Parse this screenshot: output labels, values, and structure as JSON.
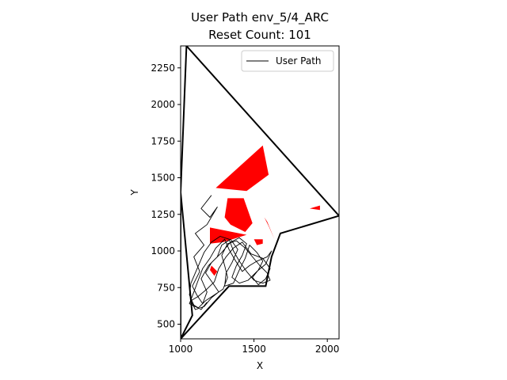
{
  "chart_data": {
    "type": "line",
    "title": "User Path env_5/4_ARC",
    "subtitle": "Reset Count: 101",
    "xlabel": "X",
    "ylabel": "Y",
    "xlim": [
      1000,
      2080
    ],
    "ylim": [
      400,
      2400
    ],
    "xticks": [
      1000,
      1500,
      2000
    ],
    "yticks": [
      500,
      750,
      1000,
      1250,
      1500,
      1750,
      2000,
      2250
    ],
    "legend": {
      "position": "top-right",
      "entries": [
        "User Path"
      ]
    },
    "colors": {
      "boundary": "#000000",
      "obstacle": "#ff0000",
      "path": "#000000"
    },
    "boundary": [
      [
        1040,
        2400
      ],
      [
        2080,
        1240
      ],
      [
        1680,
        1120
      ],
      [
        1620,
        960
      ],
      [
        1580,
        760
      ],
      [
        1480,
        760
      ],
      [
        1330,
        760
      ],
      [
        1000,
        400
      ],
      [
        1000,
        1400
      ],
      [
        1040,
        2400
      ]
    ],
    "boundary_inner": [
      [
        1000,
        1400
      ],
      [
        1080,
        560
      ],
      [
        1000,
        400
      ]
    ],
    "obstacles": [
      [
        [
          1240,
          1430
        ],
        [
          1560,
          1720
        ],
        [
          1600,
          1520
        ],
        [
          1450,
          1410
        ]
      ],
      [
        [
          1320,
          1360
        ],
        [
          1430,
          1360
        ],
        [
          1490,
          1190
        ],
        [
          1440,
          1130
        ],
        [
          1340,
          1180
        ],
        [
          1300,
          1230
        ]
      ],
      [
        [
          1570,
          1230
        ],
        [
          1600,
          1170
        ],
        [
          1640,
          1080
        ],
        [
          1590,
          1200
        ]
      ],
      [
        [
          1200,
          1160
        ],
        [
          1450,
          1110
        ],
        [
          1290,
          1060
        ],
        [
          1200,
          1050
        ]
      ],
      [
        [
          1500,
          1080
        ],
        [
          1560,
          1080
        ],
        [
          1560,
          1050
        ],
        [
          1520,
          1040
        ]
      ],
      [
        [
          1880,
          1290
        ],
        [
          1950,
          1310
        ],
        [
          1950,
          1280
        ]
      ],
      [
        [
          1200,
          870
        ],
        [
          1230,
          830
        ],
        [
          1250,
          860
        ],
        [
          1210,
          900
        ]
      ]
    ],
    "path": [
      [
        1210,
        1380
      ],
      [
        1140,
        1290
      ],
      [
        1200,
        1230
      ],
      [
        1250,
        1300
      ],
      [
        1180,
        1180
      ],
      [
        1100,
        1120
      ],
      [
        1160,
        1040
      ],
      [
        1090,
        960
      ],
      [
        1130,
        860
      ],
      [
        1080,
        760
      ],
      [
        1110,
        700
      ],
      [
        1150,
        640
      ],
      [
        1180,
        720
      ],
      [
        1140,
        810
      ],
      [
        1190,
        900
      ],
      [
        1250,
        960
      ],
      [
        1280,
        1040
      ],
      [
        1340,
        1080
      ],
      [
        1390,
        1010
      ],
      [
        1350,
        920
      ],
      [
        1310,
        850
      ],
      [
        1300,
        760
      ],
      [
        1360,
        780
      ],
      [
        1400,
        870
      ],
      [
        1440,
        950
      ],
      [
        1470,
        1040
      ],
      [
        1520,
        990
      ],
      [
        1560,
        930
      ],
      [
        1530,
        870
      ],
      [
        1490,
        820
      ],
      [
        1530,
        770
      ],
      [
        1580,
        810
      ],
      [
        1610,
        880
      ],
      [
        1560,
        950
      ],
      [
        1480,
        980
      ],
      [
        1420,
        1060
      ],
      [
        1360,
        1020
      ],
      [
        1310,
        960
      ],
      [
        1260,
        880
      ],
      [
        1230,
        790
      ],
      [
        1180,
        740
      ],
      [
        1120,
        690
      ],
      [
        1070,
        660
      ],
      [
        1100,
        600
      ],
      [
        1160,
        620
      ],
      [
        1210,
        680
      ],
      [
        1260,
        720
      ],
      [
        1220,
        780
      ],
      [
        1170,
        850
      ],
      [
        1210,
        920
      ],
      [
        1280,
        990
      ],
      [
        1340,
        1060
      ],
      [
        1400,
        1090
      ],
      [
        1450,
        1050
      ],
      [
        1420,
        970
      ],
      [
        1380,
        900
      ],
      [
        1350,
        820
      ],
      [
        1400,
        780
      ],
      [
        1460,
        800
      ],
      [
        1520,
        860
      ],
      [
        1580,
        910
      ],
      [
        1620,
        1000
      ],
      [
        1590,
        960
      ],
      [
        1520,
        930
      ],
      [
        1470,
        900
      ],
      [
        1420,
        860
      ],
      [
        1370,
        940
      ],
      [
        1330,
        1010
      ],
      [
        1300,
        1080
      ],
      [
        1240,
        1020
      ],
      [
        1200,
        950
      ],
      [
        1150,
        880
      ],
      [
        1120,
        800
      ],
      [
        1090,
        720
      ],
      [
        1060,
        640
      ],
      [
        1120,
        610
      ],
      [
        1170,
        660
      ],
      [
        1230,
        700
      ],
      [
        1290,
        740
      ],
      [
        1320,
        820
      ],
      [
        1300,
        900
      ],
      [
        1280,
        970
      ],
      [
        1320,
        1050
      ],
      [
        1380,
        1070
      ],
      [
        1440,
        1020
      ],
      [
        1490,
        960
      ],
      [
        1540,
        900
      ],
      [
        1590,
        850
      ],
      [
        1610,
        800
      ],
      [
        1560,
        780
      ],
      [
        1500,
        800
      ],
      [
        1450,
        860
      ],
      [
        1400,
        930
      ],
      [
        1360,
        1000
      ],
      [
        1330,
        1080
      ],
      [
        1270,
        1100
      ],
      [
        1210,
        1060
      ],
      [
        1160,
        990
      ],
      [
        1130,
        920
      ],
      [
        1100,
        850
      ],
      [
        1070,
        780
      ],
      [
        1060,
        700
      ],
      [
        1090,
        630
      ],
      [
        1140,
        600
      ],
      [
        1180,
        650
      ]
    ]
  }
}
